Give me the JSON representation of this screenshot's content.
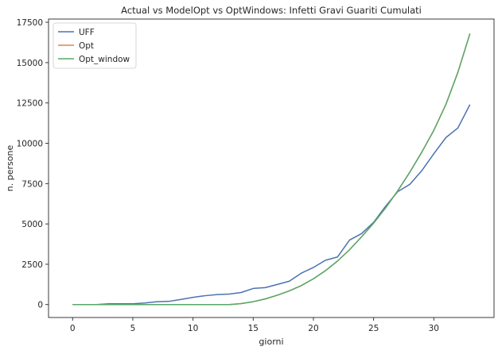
{
  "chart_data": {
    "type": "line",
    "title": "Actual vs ModelOpt vs OptWindows: Infetti Gravi Guariti Cumulati",
    "xlabel": "giorni",
    "ylabel": "n. persone",
    "xlim": [
      -2,
      35
    ],
    "ylim": [
      -800,
      17700
    ],
    "xticks": [
      0,
      5,
      10,
      15,
      20,
      25,
      30
    ],
    "yticks": [
      0,
      2500,
      5000,
      7500,
      10000,
      12500,
      15000,
      17500
    ],
    "grid": false,
    "legend_position": "top-left",
    "x": [
      0,
      1,
      2,
      3,
      4,
      5,
      6,
      7,
      8,
      9,
      10,
      11,
      12,
      13,
      14,
      15,
      16,
      17,
      18,
      19,
      20,
      21,
      22,
      23,
      24,
      25,
      26,
      27,
      28,
      29,
      30,
      31,
      32,
      33
    ],
    "series": [
      {
        "name": "UFF",
        "color": "#4c72b0",
        "values": [
          0,
          0,
          0,
          50,
          50,
          50,
          100,
          180,
          200,
          320,
          450,
          550,
          620,
          650,
          750,
          1000,
          1050,
          1250,
          1450,
          1950,
          2300,
          2750,
          2950,
          4000,
          4400,
          5100,
          6100,
          7000,
          7450,
          8300,
          9350,
          10350,
          10950,
          12400
        ]
      },
      {
        "name": "Opt",
        "color": "#dd8452",
        "values": [
          0,
          0,
          0,
          0,
          0,
          0,
          0,
          0,
          0,
          0,
          0,
          0,
          0,
          0,
          60,
          180,
          350,
          580,
          850,
          1180,
          1600,
          2100,
          2700,
          3400,
          4200,
          5050,
          6000,
          7050,
          8200,
          9450,
          10800,
          12400,
          14400,
          16800
        ]
      },
      {
        "name": "Opt_window",
        "color": "#55a868",
        "values": [
          0,
          0,
          0,
          0,
          0,
          0,
          0,
          0,
          0,
          0,
          0,
          0,
          0,
          0,
          60,
          180,
          350,
          580,
          850,
          1180,
          1600,
          2100,
          2700,
          3400,
          4200,
          5050,
          6000,
          7050,
          8200,
          9450,
          10800,
          12400,
          14400,
          16800
        ]
      }
    ]
  }
}
